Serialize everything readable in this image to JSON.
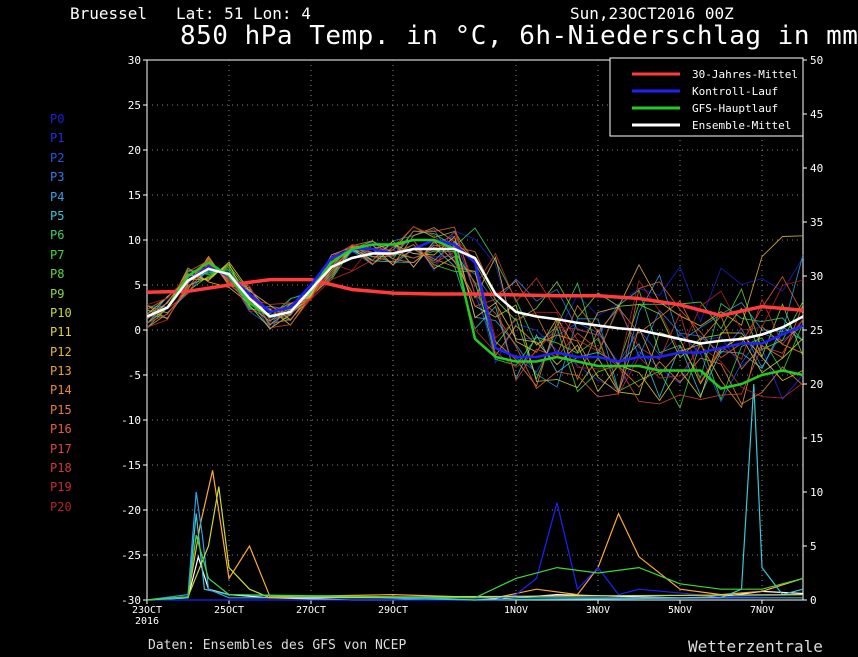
{
  "header": {
    "location": "Bruessel   Lat: 51 Lon: 4",
    "datetime": "Sun,23OCT2016 00Z",
    "title": "850 hPa Temp. in °C, 6h-Niederschlag in mm"
  },
  "footer": {
    "source": "Daten: Ensembles des GFS von NCEP",
    "brand": "Wetterzentrale"
  },
  "members": [
    {
      "label": "P0",
      "color": "#1f1fd6"
    },
    {
      "label": "P1",
      "color": "#2030e0"
    },
    {
      "label": "P2",
      "color": "#2a55e6"
    },
    {
      "label": "P3",
      "color": "#2f7ae8"
    },
    {
      "label": "P4",
      "color": "#33a0e8"
    },
    {
      "label": "P5",
      "color": "#36c8d8"
    },
    {
      "label": "P6",
      "color": "#3ad06a"
    },
    {
      "label": "P7",
      "color": "#3ed83a"
    },
    {
      "label": "P8",
      "color": "#5ad83a"
    },
    {
      "label": "P9",
      "color": "#8ad83a"
    },
    {
      "label": "P10",
      "color": "#c8d83a"
    },
    {
      "label": "P11",
      "color": "#e8d03a"
    },
    {
      "label": "P12",
      "color": "#e8b83a"
    },
    {
      "label": "P13",
      "color": "#e8a03a"
    },
    {
      "label": "P14",
      "color": "#e8883a"
    },
    {
      "label": "P15",
      "color": "#e87a3a"
    },
    {
      "label": "P16",
      "color": "#e0603a"
    },
    {
      "label": "P17",
      "color": "#d84a34"
    },
    {
      "label": "P18",
      "color": "#d03a30"
    },
    {
      "label": "P19",
      "color": "#c42c2c"
    },
    {
      "label": "P20",
      "color": "#b22222"
    }
  ],
  "chart_data": {
    "type": "line",
    "x_ticks": [
      "23OCT\n2016",
      "25OCT",
      "27OCT",
      "29OCT",
      "1NOV",
      "3NOV",
      "5NOV",
      "7NOV"
    ],
    "x_range_days": [
      0,
      16
    ],
    "y_left": {
      "label": "°C",
      "range": [
        -30,
        30
      ],
      "ticks": [
        30,
        25,
        20,
        15,
        10,
        5,
        0,
        -5,
        -10,
        -15,
        -20,
        -25,
        -30
      ]
    },
    "y_right": {
      "label": "mm",
      "range": [
        0,
        50
      ],
      "ticks": [
        50,
        45,
        40,
        35,
        30,
        25,
        20,
        15,
        10,
        5,
        0
      ]
    },
    "grid": true,
    "legend": {
      "position": "top-right",
      "items": [
        {
          "name": "30-Jahres-Mittel",
          "color": "#ff3b3b"
        },
        {
          "name": "Kontroll-Lauf",
          "color": "#2020ff"
        },
        {
          "name": "GFS-Hauptlauf",
          "color": "#22cc22"
        },
        {
          "name": "Ensemble-Mittel",
          "color": "#ffffff"
        }
      ]
    },
    "series": [
      {
        "name": "30-Jahres-Mittel",
        "color": "#ff3b3b",
        "width": 3.5,
        "x": [
          0,
          1,
          2,
          3,
          4,
          5,
          6,
          7,
          8,
          9,
          10,
          11,
          12,
          13,
          14,
          15,
          16
        ],
        "y": [
          4.2,
          4.3,
          5.0,
          5.6,
          5.6,
          4.5,
          4.1,
          4.0,
          4.0,
          3.9,
          3.8,
          3.8,
          3.5,
          2.8,
          1.6,
          2.6,
          2.2
        ]
      },
      {
        "name": "Kontroll-Lauf",
        "color": "#2020ff",
        "width": 2.5,
        "x": [
          0,
          0.5,
          1,
          1.5,
          2,
          2.5,
          3,
          3.5,
          4,
          4.5,
          5,
          5.5,
          6,
          6.5,
          7,
          7.5,
          8,
          8.5,
          9,
          9.5,
          10,
          10.5,
          11,
          11.5,
          12,
          12.5,
          13,
          13.5,
          14,
          14.5,
          15,
          15.5,
          16
        ],
        "y": [
          1.5,
          2.5,
          5.5,
          7.0,
          6.0,
          4.0,
          2.0,
          2.5,
          5.0,
          8.0,
          9.0,
          9.0,
          8.5,
          9.0,
          10.0,
          9.5,
          7.5,
          -2.0,
          -3.0,
          -3.0,
          -2.5,
          -3.0,
          -3.0,
          -3.5,
          -3.0,
          -3.0,
          -2.5,
          -2.5,
          -2.0,
          -1.5,
          -1.5,
          -0.5,
          0.5
        ]
      },
      {
        "name": "GFS-Hauptlauf",
        "color": "#22cc22",
        "width": 2.5,
        "x": [
          0,
          0.5,
          1,
          1.5,
          2,
          2.5,
          3,
          3.5,
          4,
          4.5,
          5,
          5.5,
          6,
          6.5,
          7,
          7.5,
          8,
          8.5,
          9,
          9.5,
          10,
          10.5,
          11,
          11.5,
          12,
          12.5,
          13,
          13.5,
          14,
          14.5,
          15,
          15.5,
          16
        ],
        "y": [
          1.5,
          2.5,
          6.0,
          7.5,
          6.0,
          3.0,
          1.5,
          2.0,
          4.5,
          7.5,
          9.0,
          9.5,
          9.5,
          10.0,
          10.0,
          9.0,
          -1.0,
          -3.0,
          -3.5,
          -3.5,
          -3.0,
          -3.5,
          -4.0,
          -4.0,
          -4.0,
          -4.5,
          -4.5,
          -4.5,
          -6.5,
          -6.0,
          -5.0,
          -4.5,
          -5.0
        ]
      },
      {
        "name": "Ensemble-Mittel",
        "color": "#ffffff",
        "width": 2.5,
        "x": [
          0,
          0.5,
          1,
          1.5,
          2,
          2.5,
          3,
          3.5,
          4,
          4.5,
          5,
          5.5,
          6,
          6.5,
          7,
          7.5,
          8,
          8.5,
          9,
          9.5,
          10,
          10.5,
          11,
          11.5,
          12,
          12.5,
          13,
          13.5,
          14,
          14.5,
          15,
          15.5,
          16
        ],
        "y": [
          1.5,
          2.5,
          5.5,
          6.8,
          6.2,
          3.5,
          1.5,
          2.0,
          4.5,
          7.0,
          8.0,
          8.5,
          8.5,
          9.0,
          9.0,
          9.0,
          8.0,
          4.0,
          2.0,
          1.5,
          1.2,
          0.8,
          0.5,
          0.2,
          0.0,
          -0.5,
          -1.0,
          -1.5,
          -1.2,
          -1.0,
          -0.5,
          0.3,
          1.5
        ]
      }
    ],
    "precip": {
      "axis": "right",
      "series": [
        {
          "color": "#ffffff",
          "x": [
            0,
            1,
            1.25,
            1.5,
            2,
            3,
            4,
            5,
            6,
            7,
            8,
            9,
            10,
            11,
            12,
            13,
            14,
            15,
            16
          ],
          "y": [
            0,
            0.2,
            4.0,
            1.0,
            0.5,
            0.2,
            0.1,
            0,
            0,
            0.1,
            0,
            0.2,
            0.5,
            0.4,
            0.3,
            0.2,
            0.3,
            0.8,
            0.6
          ]
        },
        {
          "color": "#ffaa33",
          "x": [
            0,
            1,
            1.3,
            1.6,
            2,
            2.5,
            3,
            6,
            8.5,
            9.5,
            10.5,
            11,
            11.5,
            12,
            13,
            14,
            15,
            16
          ],
          "y": [
            0,
            0.3,
            7.0,
            12.0,
            2.0,
            5.0,
            0.3,
            0.5,
            0.2,
            1.0,
            0.5,
            3.0,
            8.0,
            4.0,
            1.0,
            0.5,
            0.8,
            2.0
          ]
        },
        {
          "color": "#2020ff",
          "x": [
            0,
            8.5,
            9,
            9.5,
            10,
            10.5,
            11,
            11.5,
            12,
            14,
            16
          ],
          "y": [
            0,
            0,
            0.5,
            2.0,
            9.0,
            1.0,
            3.0,
            0.5,
            1.0,
            0.3,
            0.5
          ]
        },
        {
          "color": "#36c8d8",
          "x": [
            0,
            1,
            1.2,
            1.4,
            2,
            8,
            14,
            14.5,
            14.8,
            15,
            15.5,
            16
          ],
          "y": [
            0,
            0.2,
            8.0,
            1.0,
            0.5,
            0,
            0.2,
            1.0,
            20.0,
            3.0,
            0.5,
            1.0
          ]
        },
        {
          "color": "#33a0e8",
          "x": [
            0,
            1,
            1.2,
            1.35,
            1.5,
            2,
            16
          ],
          "y": [
            0,
            0.5,
            10.0,
            6.0,
            1.0,
            0.2,
            0.2
          ]
        },
        {
          "color": "#c8d83a",
          "x": [
            0,
            1,
            1.5,
            1.75,
            2,
            2.5,
            3,
            16
          ],
          "y": [
            0,
            0.3,
            5.0,
            10.5,
            3.0,
            1.0,
            0.2,
            0.5
          ]
        },
        {
          "color": "#3ed83a",
          "x": [
            0,
            1,
            1.2,
            1.5,
            2,
            8,
            9,
            10,
            11,
            12,
            13,
            14,
            15,
            16
          ],
          "y": [
            0,
            0.3,
            6.0,
            2.0,
            0.5,
            0.2,
            2.0,
            3.0,
            2.5,
            3.0,
            1.5,
            1.0,
            1.0,
            2.0
          ]
        }
      ]
    }
  }
}
